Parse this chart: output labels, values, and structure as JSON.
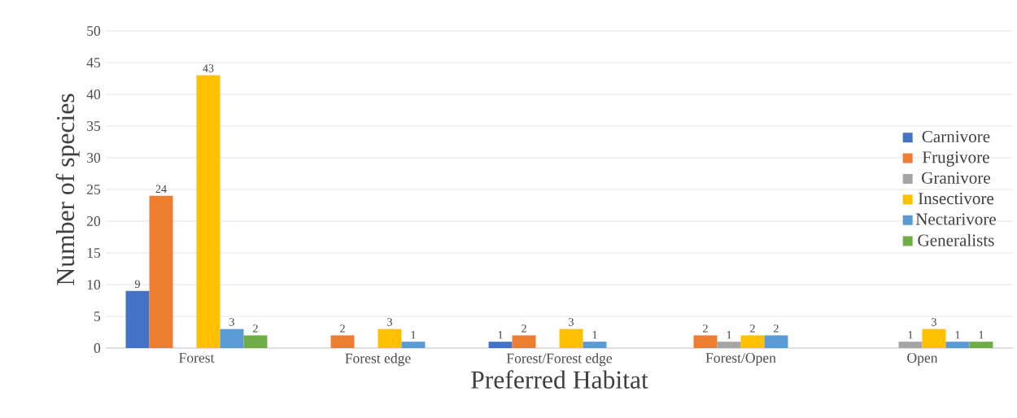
{
  "chart_data": {
    "type": "bar",
    "xlabel": "Preferred Habitat",
    "ylabel": "Number of species",
    "categories": [
      "Forest",
      "Forest edge",
      "Forest/Forest edge",
      "Forest/Open",
      "Open"
    ],
    "series": [
      {
        "name": "Carnivore",
        "color": "#4472c4",
        "values": [
          9,
          null,
          1,
          null,
          null
        ]
      },
      {
        "name": "Frugivore",
        "color": "#ed7d31",
        "values": [
          24,
          2,
          2,
          2,
          null
        ]
      },
      {
        "name": "Granivore",
        "color": "#a5a5a5",
        "values": [
          null,
          null,
          null,
          1,
          1
        ]
      },
      {
        "name": "Insectivore",
        "color": "#ffc000",
        "values": [
          43,
          3,
          3,
          2,
          3
        ]
      },
      {
        "name": "Nectarivore",
        "color": "#5b9bd5",
        "values": [
          3,
          1,
          1,
          2,
          1
        ]
      },
      {
        "name": "Generalists",
        "color": "#70ad47",
        "values": [
          2,
          null,
          null,
          null,
          1
        ]
      }
    ],
    "ylim": [
      0,
      50
    ],
    "yticks": [
      0,
      5,
      10,
      15,
      20,
      25,
      30,
      35,
      40,
      45,
      50
    ],
    "grid": "y",
    "legend": "right",
    "data_labels": true
  }
}
